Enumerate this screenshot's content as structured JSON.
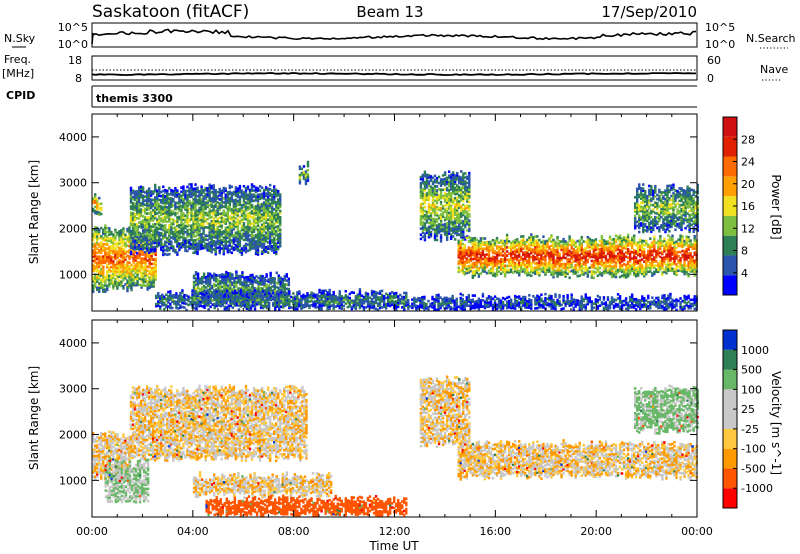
{
  "header": {
    "station": "Saskatoon (fitACF)",
    "beam": "Beam 13",
    "date": "17/Sep/2010"
  },
  "top_panels": {
    "nsky_label": "N.Sky",
    "nsky_ticks": [
      "10^5",
      "10^0"
    ],
    "nsearch_label": "N.Search",
    "nsearch_ticks": [
      "10^5",
      "10^0"
    ],
    "freq_label_1": "Freq.",
    "freq_label_2": "[MHz]",
    "freq_ticks": [
      "18",
      "8"
    ],
    "nave_label": "Nave",
    "nave_ticks": [
      "60",
      "0"
    ],
    "cpid_label": "CPID",
    "cpid_value": "themis 3300"
  },
  "chart_data": [
    {
      "type": "heatmap",
      "name": "power",
      "ylabel": "Slant Range [km]",
      "yticks": [
        "4000",
        "3000",
        "2000",
        "1000"
      ],
      "ylim": [
        200,
        4500
      ],
      "xlim": [
        "00:00",
        "24:00"
      ],
      "colorbar_label": "Power [dB]",
      "colorbar_ticks": [
        "28",
        "24",
        "20",
        "16",
        "12",
        "8",
        "4"
      ],
      "colors": [
        "#0000ff",
        "#2a55aa",
        "#2f7f56",
        "#7fbf3f",
        "#f0e020",
        "#ffa000",
        "#ff6a00",
        "#e02000",
        "#d01010"
      ],
      "echo_bands": [
        {
          "t0": 0.0,
          "t1": 2.5,
          "r0": 700,
          "r1": 2000,
          "level": 22
        },
        {
          "t0": 0.0,
          "t1": 0.4,
          "r0": 2300,
          "r1": 2700,
          "level": 20
        },
        {
          "t0": 1.5,
          "t1": 7.5,
          "r0": 1500,
          "r1": 2900,
          "level": 12
        },
        {
          "t0": 4.0,
          "t1": 7.8,
          "r0": 400,
          "r1": 1000,
          "level": 10
        },
        {
          "t0": 2.5,
          "t1": 12.5,
          "r0": 250,
          "r1": 600,
          "level": 8
        },
        {
          "t0": 8.2,
          "t1": 8.6,
          "r0": 3000,
          "r1": 3400,
          "level": 12
        },
        {
          "t0": 13.0,
          "t1": 15.0,
          "r0": 1800,
          "r1": 3200,
          "level": 14
        },
        {
          "t0": 14.5,
          "t1": 24.0,
          "r0": 1000,
          "r1": 1800,
          "level": 26
        },
        {
          "t0": 21.5,
          "t1": 24.0,
          "r0": 2000,
          "r1": 2900,
          "level": 12
        },
        {
          "t0": 12.5,
          "t1": 24.0,
          "r0": 250,
          "r1": 500,
          "level": 6
        }
      ]
    },
    {
      "type": "heatmap",
      "name": "velocity",
      "ylabel": "Slant Range [km]",
      "yticks": [
        "4000",
        "3000",
        "2000",
        "1000"
      ],
      "ylim": [
        200,
        4500
      ],
      "xticks": [
        "00:00",
        "04:00",
        "08:00",
        "12:00",
        "16:00",
        "20:00",
        "00:00"
      ],
      "xlabel": "Time UT",
      "colorbar_label": "Velocity [m s^-1]",
      "colorbar_ticks": [
        "1000",
        "500",
        "100",
        "25",
        "-25",
        "-100",
        "-500",
        "-1000"
      ],
      "colors": [
        "#ff0000",
        "#ff5500",
        "#ff9a00",
        "#ffc840",
        "#c8c8c8",
        "#c8c8c8",
        "#68b868",
        "#2e7f56",
        "#0030d0"
      ],
      "echo_bands": [
        {
          "t0": 0.0,
          "t1": 1.5,
          "r0": 1100,
          "r1": 2000,
          "level": 0
        },
        {
          "t0": 0.5,
          "t1": 2.2,
          "r0": 600,
          "r1": 1400,
          "level": 100
        },
        {
          "t0": 1.5,
          "t1": 8.5,
          "r0": 1500,
          "r1": 3000,
          "level": 0
        },
        {
          "t0": 4.0,
          "t1": 9.5,
          "r0": 700,
          "r1": 1100,
          "level": 0
        },
        {
          "t0": 4.5,
          "t1": 12.5,
          "r0": 250,
          "r1": 600,
          "level": -200
        },
        {
          "t0": 13.0,
          "t1": 15.0,
          "r0": 1800,
          "r1": 3200,
          "level": 0
        },
        {
          "t0": 14.5,
          "t1": 24.0,
          "r0": 1100,
          "r1": 1800,
          "level": 0
        },
        {
          "t0": 21.5,
          "t1": 24.0,
          "r0": 2100,
          "r1": 3000,
          "level": 120
        }
      ]
    }
  ]
}
